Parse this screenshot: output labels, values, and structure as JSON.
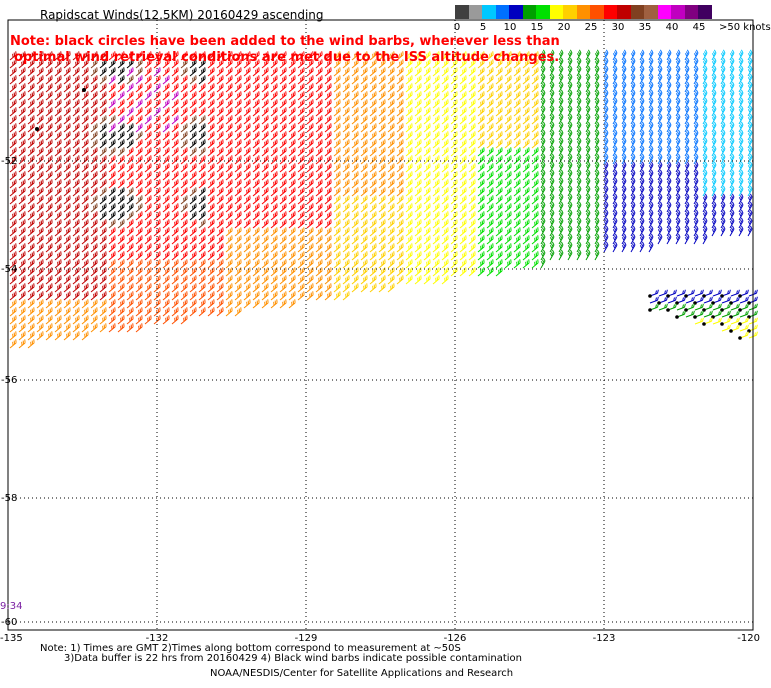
{
  "title": "Rapidscat Winds(12.5KM) 20160429 ascending",
  "notes": {
    "line1": "Note: black circles have been added to the wind barbs, wherever less than",
    "line2": "optimal wind retrieval conditions are met due to the ISS altitude changes."
  },
  "colorbar": {
    "tick_labels": [
      "0",
      "5",
      "10",
      "15",
      "20",
      "25",
      "30",
      "35",
      "40",
      "45",
      ">50 knots"
    ],
    "colors": [
      "#404040",
      "#9a9a9a",
      "#00c8ff",
      "#0070ff",
      "#0000c0",
      "#00a000",
      "#00e000",
      "#ffff00",
      "#ffd000",
      "#ff9000",
      "#ff5000",
      "#ff0000",
      "#c00000",
      "#804020",
      "#a06040",
      "#ff00ff",
      "#c000c0",
      "#800080",
      "#400060"
    ]
  },
  "map": {
    "x_ticks": [
      "-135",
      "-132",
      "-129",
      "-126",
      "-123",
      "-120"
    ],
    "y_ticks": [
      "-52",
      "-54",
      "-56",
      "-58",
      "-60"
    ],
    "time_label": "9:34",
    "black_circles_visible": true
  },
  "footer": {
    "line1": "Note: 1) Times are GMT 2)Times along bottom correspond to measurement at ~50S",
    "line2": "3)Data buffer is 22 hrs from 20160429 4) Black wind barbs indicate possible contamination",
    "credit": "NOAA/NESDIS/Center for Satellite Applications and Research"
  }
}
